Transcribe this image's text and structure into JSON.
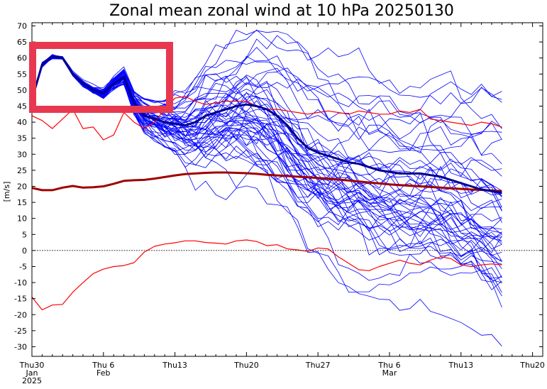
{
  "chart_data": {
    "type": "line",
    "title": "Zonal mean zonal wind at 10 hPa 20250130",
    "ylabel": "[m/s]",
    "xlabel": "",
    "ylim": [
      -33,
      71
    ],
    "yticks": [
      70,
      65,
      60,
      55,
      50,
      45,
      40,
      35,
      30,
      25,
      20,
      15,
      10,
      5,
      0,
      -5,
      -10,
      -15,
      -20,
      -25,
      -30
    ],
    "x_range_days": [
      0,
      50
    ],
    "x_tick_labels": [
      {
        "day": 0,
        "lines": [
          "Thu30",
          "Jan",
          "2025"
        ]
      },
      {
        "day": 7,
        "lines": [
          "Thu 6",
          "Feb"
        ]
      },
      {
        "day": 14,
        "lines": [
          "Thu13"
        ]
      },
      {
        "day": 21,
        "lines": [
          "Thu20"
        ]
      },
      {
        "day": 28,
        "lines": [
          "Thu27"
        ]
      },
      {
        "day": 35,
        "lines": [
          "Thu 6",
          "Mar"
        ]
      },
      {
        "day": 42,
        "lines": [
          "Thu13"
        ]
      },
      {
        "day": 49,
        "lines": [
          "Thu20"
        ]
      }
    ],
    "grid": false,
    "zero_line": true,
    "colors": {
      "ensemble": "#0000ff",
      "ensemble_mean": "#000090",
      "climatology": "#ff0000",
      "climatology_mean": "#a00000",
      "highlight_box": "#e8384f"
    },
    "ensemble_members": 51,
    "ensemble_start_day": 0,
    "ensemble_end_day": 46,
    "series": [
      {
        "role": "climatology-mean",
        "x": [
          0,
          1,
          2,
          3,
          4,
          5,
          6,
          7,
          8,
          9,
          10,
          11,
          12,
          13,
          14,
          15,
          16,
          17,
          18,
          19,
          20,
          21,
          22,
          23,
          24,
          25,
          26,
          27,
          28,
          29,
          30,
          31,
          32,
          33,
          34,
          35,
          36,
          37,
          38,
          39,
          40,
          41,
          42,
          43,
          44,
          45,
          46
        ],
        "values": [
          19.5,
          18.8,
          18.8,
          19.6,
          20.1,
          19.6,
          19.7,
          20.0,
          20.8,
          21.7,
          21.9,
          22.0,
          22.4,
          22.9,
          23.4,
          23.8,
          24.0,
          24.2,
          24.3,
          24.3,
          24.2,
          24.1,
          23.9,
          23.6,
          23.4,
          23.2,
          23.0,
          22.8,
          22.6,
          22.4,
          22.1,
          21.8,
          21.5,
          21.2,
          20.9,
          20.6,
          20.4,
          20.2,
          20.0,
          19.8,
          19.6,
          19.4,
          19.2,
          19.0,
          18.9,
          18.7,
          18.5
        ]
      },
      {
        "role": "climatology-max",
        "x": [
          0,
          1,
          2,
          3,
          4,
          5,
          6,
          7,
          8,
          9,
          10,
          11,
          12,
          13,
          14,
          15,
          16,
          17,
          18,
          19,
          20,
          21,
          22,
          23,
          24,
          25,
          26,
          27,
          28,
          29,
          30,
          31,
          32,
          33,
          34,
          35,
          36,
          37,
          38,
          39,
          40,
          41,
          42,
          43,
          44,
          45,
          46
        ],
        "values": [
          42,
          40.5,
          38,
          41,
          44,
          38,
          38.5,
          34.5,
          36,
          43,
          40,
          38,
          40,
          44,
          47.5,
          48,
          46.5,
          45.5,
          46,
          46.5,
          46.5,
          46.5,
          45,
          44,
          44,
          43.5,
          43,
          42.5,
          43,
          43.5,
          43,
          42.5,
          43.5,
          43,
          42.5,
          42.5,
          43.5,
          43,
          44,
          41,
          40.5,
          40,
          39.5,
          39,
          40,
          39.5,
          38.5
        ]
      },
      {
        "role": "climatology-min",
        "x": [
          0,
          1,
          2,
          3,
          4,
          5,
          6,
          7,
          8,
          9,
          10,
          11,
          12,
          13,
          14,
          15,
          16,
          17,
          18,
          19,
          20,
          21,
          22,
          23,
          24,
          25,
          26,
          27,
          28,
          29,
          30,
          31,
          32,
          33,
          34,
          35,
          36,
          37,
          38,
          39,
          40,
          41,
          42,
          43,
          44,
          45,
          46
        ],
        "values": [
          -14.5,
          -18.5,
          -17,
          -16.8,
          -13,
          -10,
          -7.2,
          -5.8,
          -5,
          -4.7,
          -3.8,
          -0.5,
          1.3,
          2,
          2.4,
          3,
          3,
          2.5,
          2.3,
          2,
          3,
          3.3,
          2.8,
          1.5,
          1.8,
          0.5,
          0.2,
          -0.3,
          0.8,
          0.5,
          -2,
          -4,
          -6,
          -6.3,
          -5,
          -4,
          -3,
          -4,
          -4.5,
          -3,
          -2,
          -2.5,
          -4.5,
          -5,
          -4.5,
          -4.2,
          -4.5
        ]
      },
      {
        "role": "ensemble-mean",
        "x": [
          0,
          1,
          2,
          3,
          4,
          5,
          6,
          7,
          8,
          9,
          10,
          11,
          12,
          13,
          14,
          15,
          16,
          17,
          18,
          19,
          20,
          21,
          22,
          23,
          24,
          25,
          26,
          27,
          28,
          29,
          30,
          31,
          32,
          33,
          34,
          35,
          36,
          37,
          38,
          39,
          40,
          41,
          42,
          43,
          44,
          45,
          46
        ],
        "values": [
          47,
          58,
          60.5,
          60,
          55,
          52,
          50,
          49,
          52,
          54,
          46,
          42,
          41,
          40,
          39.5,
          39,
          40,
          42,
          43,
          44,
          45,
          45.5,
          45,
          44,
          42,
          39,
          35,
          32,
          30.5,
          29.5,
          28.5,
          27.5,
          27,
          26,
          25,
          24.5,
          24,
          24,
          24,
          23.5,
          23,
          22,
          21,
          20,
          19,
          18.5,
          18
        ]
      }
    ]
  }
}
